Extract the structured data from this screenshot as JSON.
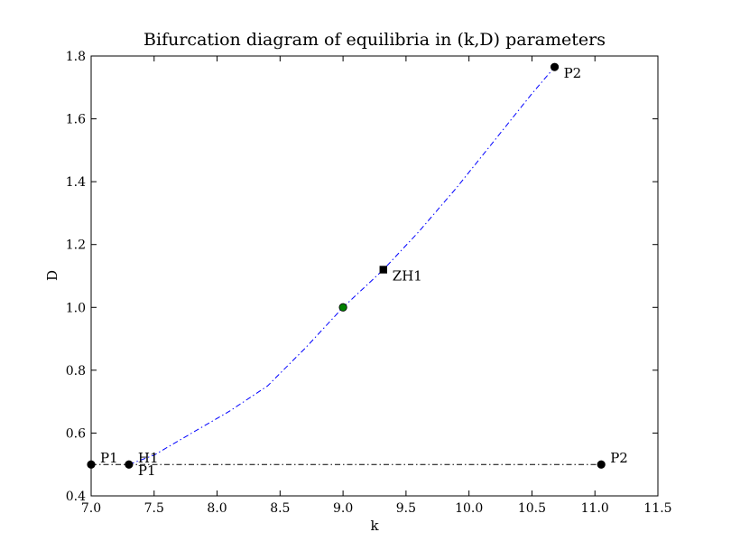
{
  "chart_data": {
    "type": "line",
    "title": "Bifurcation diagram of equilibria in (k,D) parameters",
    "xlabel": "k",
    "ylabel": "D",
    "xlim": [
      7.0,
      11.5
    ],
    "ylim": [
      0.4,
      1.8
    ],
    "xticks": [
      "7.0",
      "7.5",
      "8.0",
      "8.5",
      "9.0",
      "9.5",
      "10.0",
      "10.5",
      "11.0",
      "11.5"
    ],
    "yticks": [
      "0.4",
      "0.6",
      "0.8",
      "1.0",
      "1.2",
      "1.4",
      "1.6",
      "1.8"
    ],
    "grid": false,
    "series": [
      {
        "style": "dash-dot",
        "color": "#0000ff",
        "x": [
          7.3,
          7.5,
          7.8,
          8.1,
          8.4,
          8.7,
          9.0,
          9.32,
          9.6,
          9.9,
          10.2,
          10.5,
          10.68
        ],
        "y": [
          0.5,
          0.53,
          0.6,
          0.67,
          0.75,
          0.87,
          1.0,
          1.12,
          1.24,
          1.38,
          1.53,
          1.68,
          1.765
        ]
      },
      {
        "style": "dash-dot",
        "color": "#000000",
        "x": [
          7.0,
          7.3,
          11.05
        ],
        "y": [
          0.5,
          0.5,
          0.5
        ]
      }
    ],
    "points": [
      {
        "label": "P1",
        "marker": "circle",
        "color": "#000000",
        "x": 7.0,
        "y": 0.5,
        "label_pos": "upper-right"
      },
      {
        "label": "H1",
        "marker": "circle",
        "color": "#000000",
        "x": 7.3,
        "y": 0.5,
        "label_pos": "upper-right"
      },
      {
        "label": "P1",
        "marker": "none",
        "color": "#000000",
        "x": 7.3,
        "y": 0.5,
        "label_pos": "lower-right"
      },
      {
        "label": "P2",
        "marker": "circle",
        "color": "#000000",
        "x": 11.05,
        "y": 0.5,
        "label_pos": "upper-right"
      },
      {
        "label": "ZH1",
        "marker": "square",
        "color": "#000000",
        "x": 9.32,
        "y": 1.12,
        "label_pos": "lower-right"
      },
      {
        "label": "",
        "marker": "circle",
        "color": "#008000",
        "x": 9.0,
        "y": 1.0,
        "label_pos": "none"
      },
      {
        "label": "P2",
        "marker": "circle",
        "color": "#000000",
        "x": 10.68,
        "y": 1.765,
        "label_pos": "lower-right"
      }
    ]
  }
}
